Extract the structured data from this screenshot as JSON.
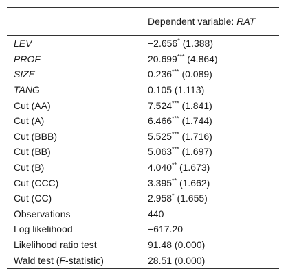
{
  "header": {
    "dependent_prefix": "Dependent variable: ",
    "dependent_var": "RAT"
  },
  "rows": [
    {
      "label": "LEV",
      "italic": true,
      "coef": "−2.656",
      "stars": "*",
      "se": " (1.388)"
    },
    {
      "label": "PROF",
      "italic": true,
      "coef": "20.699",
      "stars": "***",
      "se": " (4.864)"
    },
    {
      "label": "SIZE",
      "italic": true,
      "coef": "0.236",
      "stars": "***",
      "se": " (0.089)"
    },
    {
      "label": "TANG",
      "italic": true,
      "coef": "0.105 (1.113)",
      "stars": "",
      "se": ""
    },
    {
      "label": "Cut (AA)",
      "italic": false,
      "coef": "7.524",
      "stars": "***",
      "se": " (1.841)"
    },
    {
      "label": "Cut (A)",
      "italic": false,
      "coef": "6.466",
      "stars": "***",
      "se": " (1.744)"
    },
    {
      "label": "Cut (BBB)",
      "italic": false,
      "coef": "5.525",
      "stars": "***",
      "se": " (1.716)"
    },
    {
      "label": "Cut (BB)",
      "italic": false,
      "coef": "5.063",
      "stars": "***",
      "se": " (1.697)"
    },
    {
      "label": "Cut (B)",
      "italic": false,
      "coef": "4.040",
      "stars": "**",
      "se": " (1.673)"
    },
    {
      "label": "Cut (CCC)",
      "italic": false,
      "coef": "3.395",
      "stars": "**",
      "se": " (1.662)"
    },
    {
      "label": "Cut (CC)",
      "italic": false,
      "coef": "2.958",
      "stars": "*",
      "se": " (1.655)"
    },
    {
      "label": "Observations",
      "italic": false,
      "coef": "440",
      "stars": "",
      "se": ""
    },
    {
      "label": "Log likelihood",
      "italic": false,
      "coef": "−617.20",
      "stars": "",
      "se": ""
    },
    {
      "label": "Likelihood ratio test",
      "italic": false,
      "coef": "91.48 (0.000)",
      "stars": "",
      "se": ""
    }
  ],
  "wald": {
    "label_prefix": "Wald test (",
    "label_italic": "F",
    "label_suffix": "-statistic)",
    "value": "28.51 (0.000)"
  }
}
